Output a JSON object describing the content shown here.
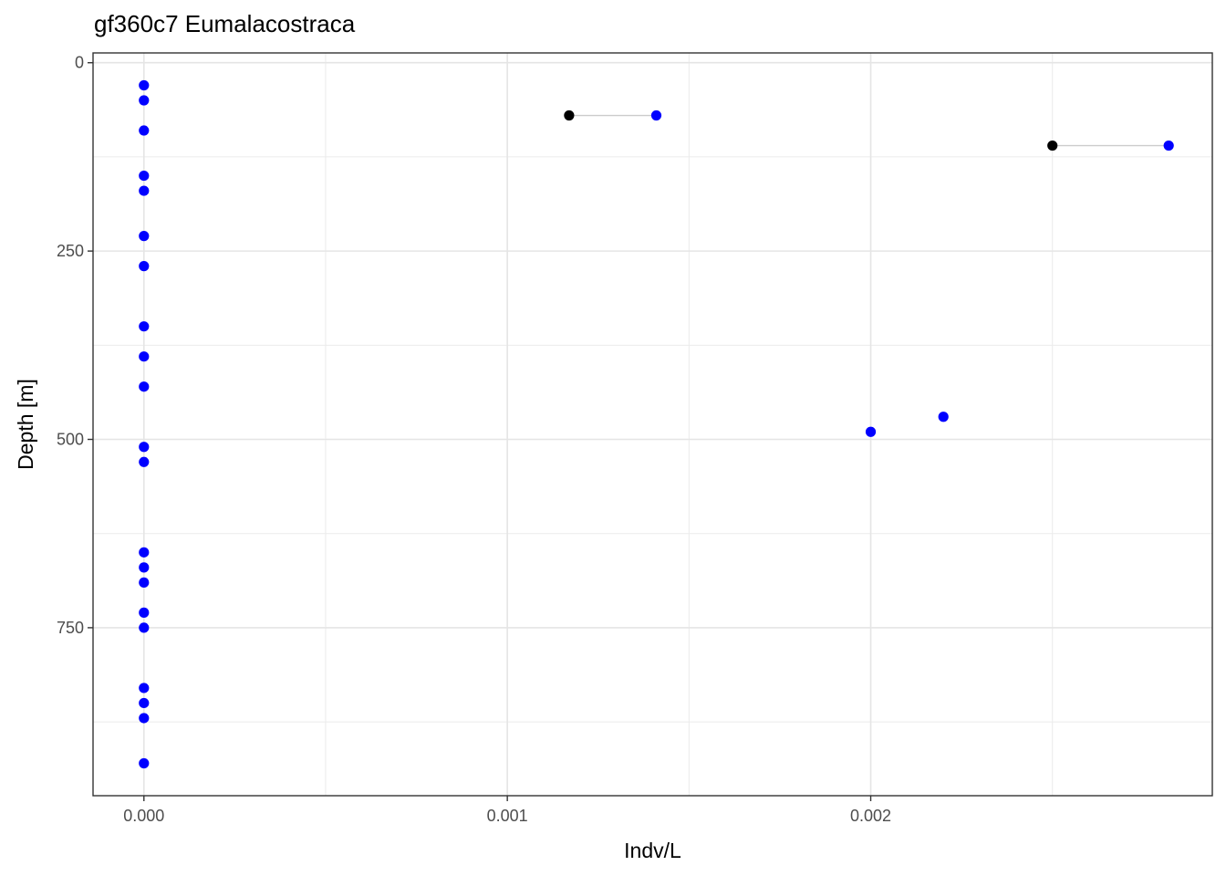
{
  "chart_data": {
    "type": "scatter",
    "title": "gf360c7 Eumalacostraca",
    "xlabel": "Indv/L",
    "ylabel": "Depth [m]",
    "xlim": [
      -0.00014,
      0.00294
    ],
    "ylim": [
      -13,
      973
    ],
    "y_reversed": true,
    "x_ticks": [
      0.0,
      0.001,
      0.002
    ],
    "x_tick_labels": [
      "0.000",
      "0.001",
      "0.002"
    ],
    "y_ticks": [
      0,
      250,
      500,
      750
    ],
    "y_tick_labels": [
      "0",
      "250",
      "500",
      "750"
    ],
    "grid": true,
    "legend": "none",
    "colors": {
      "blue": "#0000ff",
      "black": "#000000",
      "segment": "#cccccc"
    },
    "segments": [
      {
        "x1": 0.00117,
        "x2": 0.00141,
        "y": 70
      },
      {
        "x1": 0.0025,
        "x2": 0.00282,
        "y": 110
      }
    ],
    "black_points": [
      {
        "x": 0.00117,
        "y": 70
      },
      {
        "x": 0.0025,
        "y": 110
      }
    ],
    "blue_points": [
      {
        "x": 0,
        "y": 30
      },
      {
        "x": 0,
        "y": 50
      },
      {
        "x": 0,
        "y": 90
      },
      {
        "x": 0,
        "y": 150
      },
      {
        "x": 0,
        "y": 170
      },
      {
        "x": 0,
        "y": 230
      },
      {
        "x": 0,
        "y": 270
      },
      {
        "x": 0,
        "y": 350
      },
      {
        "x": 0,
        "y": 390
      },
      {
        "x": 0,
        "y": 430
      },
      {
        "x": 0,
        "y": 510
      },
      {
        "x": 0,
        "y": 530
      },
      {
        "x": 0,
        "y": 650
      },
      {
        "x": 0,
        "y": 670
      },
      {
        "x": 0,
        "y": 690
      },
      {
        "x": 0,
        "y": 730
      },
      {
        "x": 0,
        "y": 750
      },
      {
        "x": 0,
        "y": 830
      },
      {
        "x": 0,
        "y": 850
      },
      {
        "x": 0,
        "y": 870
      },
      {
        "x": 0,
        "y": 930
      },
      {
        "x": 0.00141,
        "y": 70
      },
      {
        "x": 0.00282,
        "y": 110
      },
      {
        "x": 0.0022,
        "y": 470
      },
      {
        "x": 0.002,
        "y": 490
      }
    ]
  }
}
